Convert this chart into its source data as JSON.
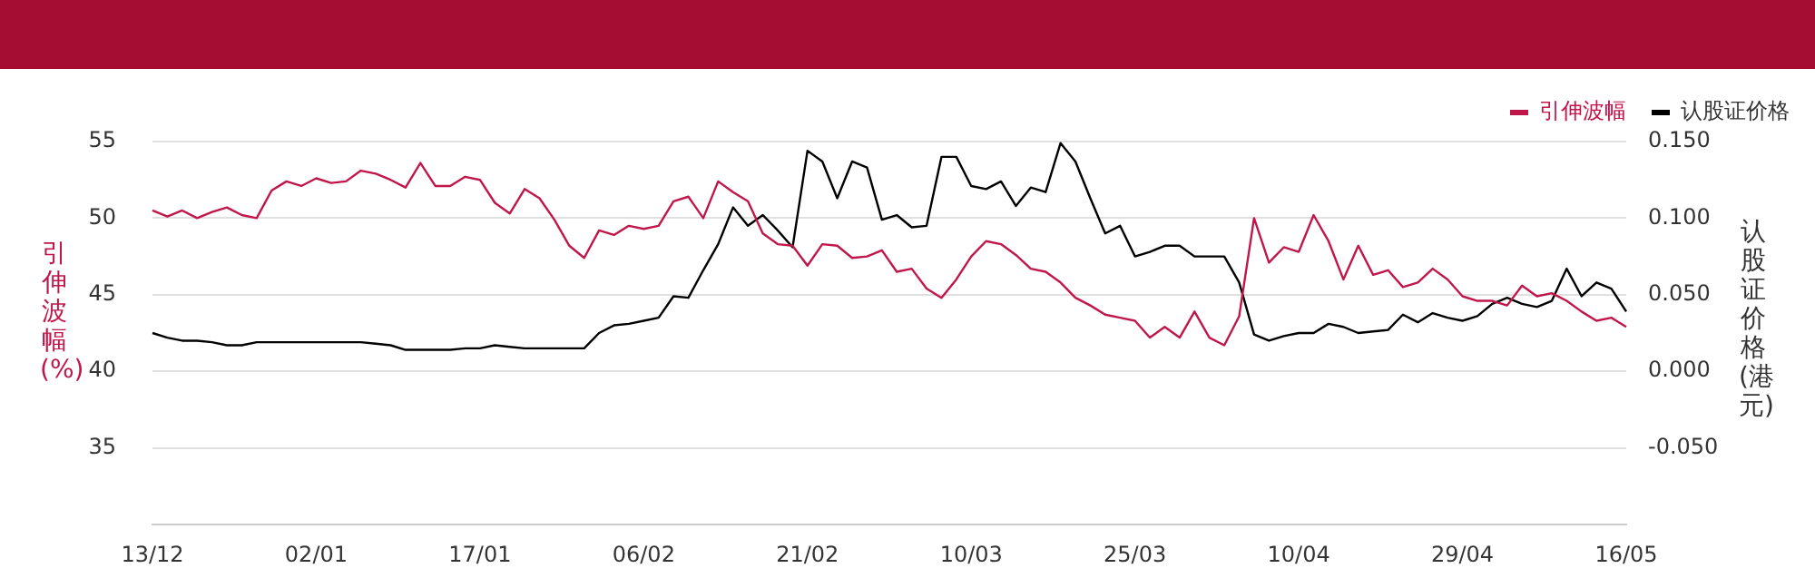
{
  "chart_data": {
    "type": "line",
    "xlabel": null,
    "ylabel": "引伸波幅(%)",
    "y2label": "认股证价格(港元)",
    "categories": [
      "13/12",
      null,
      null,
      null,
      null,
      null,
      null,
      null,
      null,
      null,
      null,
      "02/01",
      null,
      null,
      null,
      null,
      null,
      null,
      null,
      null,
      null,
      null,
      "17/01",
      null,
      null,
      null,
      null,
      null,
      null,
      null,
      null,
      null,
      null,
      "06/02",
      null,
      null,
      null,
      null,
      null,
      null,
      null,
      null,
      null,
      null,
      "21/02",
      null,
      null,
      null,
      null,
      null,
      null,
      null,
      null,
      null,
      null,
      "10/03",
      null,
      null,
      null,
      null,
      null,
      null,
      null,
      null,
      null,
      null,
      "25/03",
      null,
      null,
      null,
      null,
      null,
      null,
      null,
      null,
      null,
      null,
      "10/04",
      null,
      null,
      null,
      null,
      null,
      null,
      null,
      null,
      null,
      null,
      "29/04",
      null,
      null,
      null,
      null,
      null,
      null,
      null,
      null,
      null,
      null,
      "16/05"
    ],
    "series": [
      {
        "name": "引伸波幅",
        "color": "#c0164a",
        "values": [
          50.5,
          50.1,
          50.5,
          50.0,
          50.4,
          50.7,
          50.2,
          50.0,
          51.8,
          52.4,
          52.1,
          52.6,
          52.3,
          52.4,
          53.1,
          52.9,
          52.5,
          52.0,
          53.6,
          52.1,
          52.1,
          52.7,
          52.5,
          51.0,
          50.3,
          51.9,
          51.3,
          49.9,
          48.2,
          47.4,
          49.2,
          48.9,
          49.5,
          49.3,
          49.5,
          51.1,
          51.4,
          50.0,
          52.4,
          51.7,
          51.1,
          49.0,
          48.3,
          48.2,
          46.9,
          48.3,
          48.2,
          47.4,
          47.5,
          47.9,
          46.5,
          46.7,
          45.4,
          44.8,
          46.0,
          47.5,
          48.5,
          48.3,
          47.6,
          46.7,
          46.5,
          45.8,
          44.8,
          44.3,
          43.7,
          43.5,
          43.3,
          42.2,
          42.9,
          42.2,
          43.9,
          42.2,
          41.7,
          43.6,
          50.0,
          47.1,
          48.1,
          47.8,
          50.2,
          48.5,
          46.0,
          48.2,
          46.3,
          46.6,
          45.5,
          45.8,
          46.7,
          46.0,
          44.9,
          44.6,
          44.6,
          44.3,
          45.6,
          44.9,
          45.1,
          44.6,
          43.9,
          43.3,
          43.5,
          42.9
        ]
      },
      {
        "name": "认股证价格",
        "color": "#000000",
        "axis": "y2",
        "values": [
          0.025,
          0.022,
          0.02,
          0.02,
          0.019,
          0.017,
          0.017,
          0.019,
          0.019,
          0.019,
          0.019,
          0.019,
          0.019,
          0.019,
          0.019,
          0.018,
          0.017,
          0.014,
          0.014,
          0.014,
          0.014,
          0.015,
          0.015,
          0.017,
          0.016,
          0.015,
          0.015,
          0.015,
          0.015,
          0.015,
          0.025,
          0.03,
          0.031,
          0.033,
          0.035,
          0.049,
          0.048,
          0.066,
          0.083,
          0.107,
          0.095,
          0.102,
          0.092,
          0.081,
          0.144,
          0.137,
          0.113,
          0.137,
          0.133,
          0.099,
          0.102,
          0.094,
          0.095,
          0.14,
          0.14,
          0.121,
          0.119,
          0.124,
          0.108,
          0.12,
          0.117,
          0.149,
          0.137,
          0.113,
          0.09,
          0.095,
          0.075,
          0.078,
          0.082,
          0.082,
          0.075,
          0.075,
          0.075,
          0.058,
          0.024,
          0.02,
          0.023,
          0.025,
          0.025,
          0.031,
          0.029,
          0.025,
          0.026,
          0.027,
          0.037,
          0.032,
          0.038,
          0.035,
          0.033,
          0.036,
          0.044,
          0.048,
          0.044,
          0.042,
          0.046,
          0.067,
          0.049,
          0.058,
          0.054,
          0.039
        ]
      }
    ],
    "ylim": [
      30,
      55
    ],
    "yticks": [
      35,
      40,
      45,
      50,
      55
    ],
    "y2lim": [
      -0.1,
      0.15
    ],
    "y2ticks": [
      {
        "value": -0.05,
        "label": "-0.050"
      },
      {
        "value": 0,
        "label": "0.000"
      },
      {
        "value": 0.05,
        "label": "0.050"
      },
      {
        "value": 0.1,
        "label": "0.100"
      },
      {
        "value": 0.15,
        "label": "0.150"
      }
    ],
    "grid": "y",
    "legend": "top right",
    "marker": "none",
    "line_style": "solid"
  }
}
